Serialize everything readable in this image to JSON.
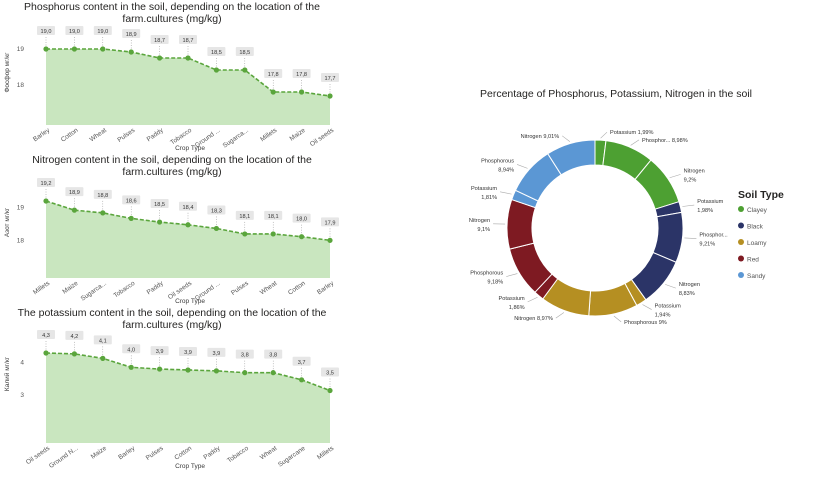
{
  "colors": {
    "area": "#c9e6bf",
    "line": "#5aa53c",
    "clayey": "#4da032",
    "black": "#2b3467",
    "loamy": "#b58f22",
    "red": "#7e1a22",
    "sandy": "#5b97d4"
  },
  "chart_data": [
    {
      "type": "area",
      "title": "Phosphorus content in the soil, depending on the location of the farm.cultures (mg/kg)",
      "xlabel": "Crop Type",
      "ylabel": "Фосфор мг/кг",
      "categories": [
        "Barley",
        "Cotton",
        "Wheat",
        "Pulses",
        "Paddy",
        "Tobacco",
        "Ground ...",
        "Sugarca...",
        "Millets",
        "Maize",
        "Oil seeds"
      ],
      "values": [
        19.0,
        19.0,
        19.0,
        18.9,
        18.7,
        18.7,
        18.5,
        18.5,
        17.8,
        17.8,
        17.7
      ],
      "data_labels": [
        "19,0",
        "19,0",
        "19,0",
        "18,9",
        "18,7",
        "18,7",
        "18,5",
        "18,5",
        "17,8",
        "17,8",
        "17,7"
      ],
      "yticks": [
        "19",
        "18"
      ],
      "ytick_values": [
        19,
        18
      ],
      "ylim": [
        17.7,
        19.0
      ]
    },
    {
      "type": "area",
      "title": "Nitrogen content in the soil, depending on the location of the farm.cultures (mg/kg)",
      "xlabel": "Crop Type",
      "ylabel": "Азот мг/кг",
      "categories": [
        "Millets",
        "Maize",
        "Sugarca...",
        "Tobacco",
        "Paddy",
        "Oil seeds",
        "Ground ...",
        "Pulses",
        "Wheat",
        "Cotton",
        "Barley"
      ],
      "values": [
        19.2,
        18.9,
        18.8,
        18.6,
        18.5,
        18.4,
        18.3,
        18.1,
        18.1,
        18.0,
        17.9
      ],
      "data_labels": [
        "19,2",
        "18,9",
        "18,8",
        "18,6",
        "18,5",
        "18,4",
        "18,3",
        "18,1",
        "18,1",
        "18,0",
        "17,9"
      ],
      "yticks": [
        "19",
        "18"
      ],
      "ytick_values": [
        19,
        18
      ],
      "ylim": [
        17.9,
        19.2
      ]
    },
    {
      "type": "area",
      "title": "The potassium content in the soil, depending on the location of the farm.cultures (mg/kg)",
      "xlabel": "Crop Type",
      "ylabel": "Калий мг/кг",
      "categories": [
        "Oil seeds",
        "Ground N...",
        "Maize",
        "Barley",
        "Pulses",
        "Cotton",
        "Paddy",
        "Tobacco",
        "Wheat",
        "Sugarcane",
        "Millets"
      ],
      "values": [
        4.3,
        4.2,
        4.1,
        4.0,
        3.9,
        3.9,
        3.9,
        3.8,
        3.8,
        3.7,
        3.5
      ],
      "data_labels": [
        "4,3",
        "4,2",
        "4,1",
        "4,0",
        "3,9",
        "3,9",
        "3,9",
        "3,8",
        "3,8",
        "3,7",
        "3,5"
      ],
      "yticks": [
        "4",
        "3"
      ],
      "ytick_values": [
        4,
        3
      ],
      "ylim": [
        3,
        4.3
      ]
    },
    {
      "type": "pie",
      "subtype": "donut",
      "title": "Percentage of Phosphorus, Potassium, Nitrogen in the soil",
      "legend_title": "Soil Type",
      "legend_position": "right",
      "legend": [
        {
          "name": "Clayey",
          "color": "#4da032"
        },
        {
          "name": "Black",
          "color": "#2b3467"
        },
        {
          "name": "Loamy",
          "color": "#b58f22"
        },
        {
          "name": "Red",
          "color": "#7e1a22"
        },
        {
          "name": "Sandy",
          "color": "#5b97d4"
        }
      ],
      "slices": [
        {
          "soil": "Clayey",
          "label": "Potassium 1,99%",
          "value": 1.99
        },
        {
          "soil": "Clayey",
          "label": "Phosphor... 8,98%",
          "value": 8.98
        },
        {
          "soil": "Clayey",
          "label": "Nitrogen 9,2%",
          "value": 9.2
        },
        {
          "soil": "Black",
          "label": "Potassium 1,98%",
          "value": 1.98
        },
        {
          "soil": "Black",
          "label": "Phosphor... 9,21%",
          "value": 9.21
        },
        {
          "soil": "Black",
          "label": "Nitrogen 8,83%",
          "value": 8.83
        },
        {
          "soil": "Loamy",
          "label": "Potassium 1,94%",
          "value": 1.94
        },
        {
          "soil": "Loamy",
          "label": "Phosphorous 9%",
          "value": 9.0
        },
        {
          "soil": "Loamy",
          "label": "Nitrogen 8,97%",
          "value": 8.97
        },
        {
          "soil": "Red",
          "label": "Potassium 1,86%",
          "value": 1.86
        },
        {
          "soil": "Red",
          "label": "Phosphorous 9,18%",
          "value": 9.18
        },
        {
          "soil": "Red",
          "label": "Nitrogen 9,1%",
          "value": 9.1
        },
        {
          "soil": "Sandy",
          "label": "Potassium 1,81%",
          "value": 1.81
        },
        {
          "soil": "Sandy",
          "label": "Phosphorous 8,94%",
          "value": 8.94
        },
        {
          "soil": "Sandy",
          "label": "Nitrogen 9,01%",
          "value": 9.01
        }
      ]
    }
  ]
}
